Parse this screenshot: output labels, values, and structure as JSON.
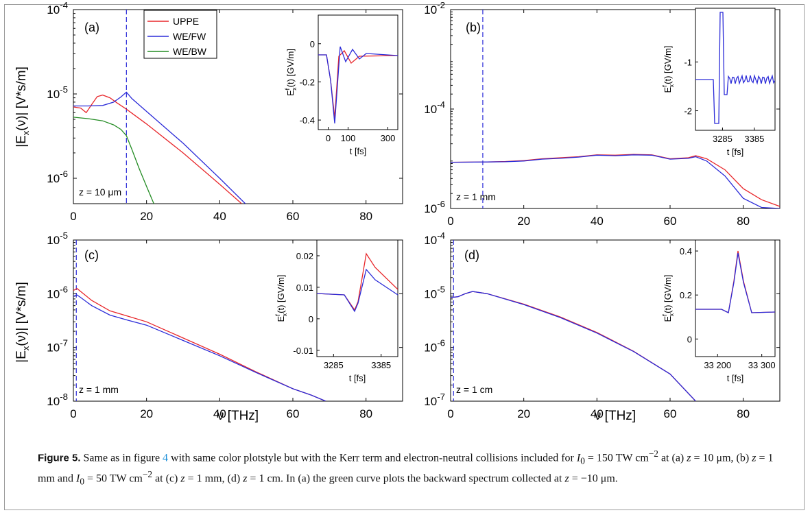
{
  "figure": {
    "axis_label_x": "ν [THz]",
    "axis_label_y": "|E_x(ν)| [V*s/m]",
    "legend": [
      "UPPE",
      "WE/FW",
      "WE/BW"
    ],
    "colors": {
      "UPPE": "#e8262a",
      "WE/FW": "#2b2bd8",
      "WE/BW": "#228b22"
    }
  },
  "chart_data": [
    {
      "type": "line",
      "panel": "(a)",
      "yscale": "log",
      "xlim": [
        0,
        90
      ],
      "ylim": [
        5e-07,
        0.0001
      ],
      "xticks": [
        0,
        20,
        40,
        60,
        80
      ],
      "yticks": [
        1e-06,
        1e-05,
        0.0001
      ],
      "annotation": "z = 10   μm",
      "marker_line_x": 14.5,
      "series": [
        {
          "name": "UPPE",
          "x": [
            0,
            2,
            3.5,
            5,
            6.5,
            8,
            10,
            12,
            14.5,
            20,
            30,
            40,
            46
          ],
          "y": [
            7e-06,
            6.8e-06,
            6e-06,
            7.5e-06,
            9.3e-06,
            9.7e-06,
            9e-06,
            7.8e-06,
            6.6e-06,
            4.4e-06,
            2e-06,
            8.5e-07,
            5e-07
          ]
        },
        {
          "name": "WE/FW",
          "x": [
            0,
            4,
            8,
            11,
            13,
            14.5,
            16,
            20,
            30,
            40,
            47
          ],
          "y": [
            7.2e-06,
            7.2e-06,
            7.3e-06,
            8e-06,
            9.2e-06,
            1.05e-05,
            8.8e-06,
            6.2e-06,
            2.6e-06,
            1e-06,
            5e-07
          ]
        },
        {
          "name": "WE/BW",
          "x": [
            0,
            4,
            8,
            11,
            13,
            14.5,
            16,
            18,
            20,
            22
          ],
          "y": [
            5.3e-06,
            5.1e-06,
            4.8e-06,
            4.3e-06,
            3.8e-06,
            3.2e-06,
            2.2e-06,
            1.3e-06,
            8e-07,
            5e-07
          ]
        }
      ],
      "inset": {
        "xlim": [
          -50,
          350
        ],
        "ylim": [
          -0.45,
          0.15
        ],
        "xticks": [
          0,
          100,
          300
        ],
        "yticks": [
          0,
          -0.2,
          -0.4
        ],
        "xlabel": "t [fs]",
        "ylabel": "E_x^f(t) [GV/m]"
      }
    },
    {
      "type": "line",
      "panel": "(b)",
      "yscale": "log",
      "xlim": [
        0,
        90
      ],
      "ylim": [
        1e-06,
        0.01
      ],
      "xticks": [
        0,
        20,
        40,
        60,
        80
      ],
      "yticks": [
        1e-06,
        0.0001,
        0.01
      ],
      "annotation": "z = 1 mm",
      "marker_line_x": 8.8,
      "series": [
        {
          "name": "UPPE",
          "x": [
            0,
            10,
            15,
            20,
            25,
            30,
            35,
            40,
            45,
            50,
            55,
            60,
            65,
            67,
            70,
            75,
            80,
            85,
            90
          ],
          "y": [
            8.5e-06,
            8.6e-06,
            8.8e-06,
            9.2e-06,
            1e-05,
            1.05e-05,
            1.1e-05,
            1.2e-05,
            1.18e-05,
            1.22e-05,
            1.2e-05,
            1e-05,
            1.05e-05,
            1.15e-05,
            1e-05,
            6e-06,
            2.5e-06,
            1.5e-06,
            1.1e-06
          ]
        },
        {
          "name": "WE/FW",
          "x": [
            0,
            10,
            15,
            20,
            25,
            30,
            35,
            40,
            45,
            50,
            55,
            60,
            65,
            67,
            70,
            75,
            80,
            85,
            90
          ],
          "y": [
            8.5e-06,
            8.6e-06,
            8.7e-06,
            9e-06,
            9.8e-06,
            1.02e-05,
            1.08e-05,
            1.18e-05,
            1.15e-05,
            1.2e-05,
            1.18e-05,
            9.8e-06,
            1.02e-05,
            1.1e-05,
            9e-06,
            4.5e-06,
            1.6e-06,
            1.05e-06,
            1e-06
          ]
        }
      ],
      "inset": {
        "xlim": [
          3200,
          3450
        ],
        "ylim": [
          -2.4,
          0.1
        ],
        "xticks": [
          3285,
          3385
        ],
        "yticks": [
          -1,
          -2
        ],
        "xlabel": "t [fs]",
        "ylabel": "E_x^f(t) [GV/m]"
      }
    },
    {
      "type": "line",
      "panel": "(c)",
      "yscale": "log",
      "xlim": [
        0,
        90
      ],
      "ylim": [
        1e-08,
        1e-05
      ],
      "xticks": [
        0,
        20,
        40,
        60,
        80
      ],
      "yticks": [
        1e-08,
        1e-07,
        1e-06,
        1e-05
      ],
      "annotation": "z = 1 mm",
      "marker_line_x": 0.8,
      "series": [
        {
          "name": "UPPE",
          "x": [
            0,
            1,
            2,
            5,
            10,
            15,
            20,
            30,
            40,
            50,
            60,
            65,
            69
          ],
          "y": [
            1.15e-06,
            1.25e-06,
            1.1e-06,
            7.5e-07,
            4.8e-07,
            3.8e-07,
            3e-07,
            1.5e-07,
            7.5e-08,
            3.5e-08,
            1.7e-08,
            1.3e-08,
            1e-08
          ]
        },
        {
          "name": "WE/FW",
          "x": [
            0,
            1,
            2,
            5,
            10,
            15,
            20,
            30,
            40,
            50,
            60,
            65,
            69
          ],
          "y": [
            9e-07,
            9.5e-07,
            8.5e-07,
            6e-07,
            4e-07,
            3.2e-07,
            2.6e-07,
            1.35e-07,
            7e-08,
            3.4e-08,
            1.7e-08,
            1.3e-08,
            1e-08
          ]
        }
      ],
      "inset": {
        "xlim": [
          3250,
          3420
        ],
        "ylim": [
          -0.012,
          0.025
        ],
        "xticks": [
          3285,
          3385
        ],
        "yticks": [
          0.02,
          0.01,
          0,
          -0.01
        ],
        "xlabel": "t [fs]",
        "ylabel": "E_x^f(t) [GV/m]"
      }
    },
    {
      "type": "line",
      "panel": "(d)",
      "yscale": "log",
      "xlim": [
        0,
        90
      ],
      "ylim": [
        1e-07,
        0.0001
      ],
      "xticks": [
        0,
        20,
        40,
        60,
        80
      ],
      "yticks": [
        1e-07,
        1e-06,
        1e-05,
        0.0001
      ],
      "annotation": "z = 1 cm",
      "marker_line_x": 0.8,
      "series": [
        {
          "name": "UPPE",
          "x": [
            0,
            2,
            4,
            6,
            10,
            20,
            30,
            40,
            50,
            60,
            67
          ],
          "y": [
            8.5e-06,
            8.8e-06,
            1e-05,
            1.1e-05,
            1e-05,
            6.4e-06,
            3.7e-06,
            1.9e-06,
            8.5e-07,
            3.2e-07,
            1e-07
          ]
        },
        {
          "name": "WE/FW",
          "x": [
            0,
            2,
            4,
            6,
            10,
            20,
            30,
            40,
            50,
            60,
            67
          ],
          "y": [
            8.5e-06,
            8.8e-06,
            1e-05,
            1.1e-05,
            1e-05,
            6.3e-06,
            3.6e-06,
            1.85e-06,
            8.4e-07,
            3.2e-07,
            1e-07
          ]
        }
      ],
      "inset": {
        "xlim": [
          33150,
          33330
        ],
        "ylim": [
          -0.08,
          0.45
        ],
        "xticks": [
          33200,
          33300
        ],
        "xticklabels": [
          "33 200",
          "33 300"
        ],
        "yticks": [
          0.4,
          0.2,
          0
        ],
        "xlabel": "t [fs]",
        "ylabel": "E_x^f(t) [GV/m]"
      }
    }
  ],
  "caption": {
    "label": "Figure 5.",
    "seg1": " Same as in figure ",
    "ref": "4",
    "seg2": " with same color plotstyle but with the Kerr term and electron-neutral collisions included for ",
    "i0_a": "I",
    "i0_a_sub": "0",
    "seg3": " = 150 TW cm",
    "exp1": "−2",
    "seg4": " at (a) ",
    "z1": "z",
    "seg5": " = 10 μm, (b) ",
    "z2": "z",
    "seg6": " = 1 mm and ",
    "i0_b": "I",
    "i0_b_sub": "0",
    "seg7": " = 50 TW cm",
    "exp2": "−2",
    "seg8": " at (c) ",
    "z3": "z",
    "seg9": " = 1 mm, (d) ",
    "z4": "z",
    "seg10": " = 1 cm. In (a) the green curve plots the backward spectrum collected at ",
    "z5": "z",
    "seg11": " = −10 μm."
  }
}
